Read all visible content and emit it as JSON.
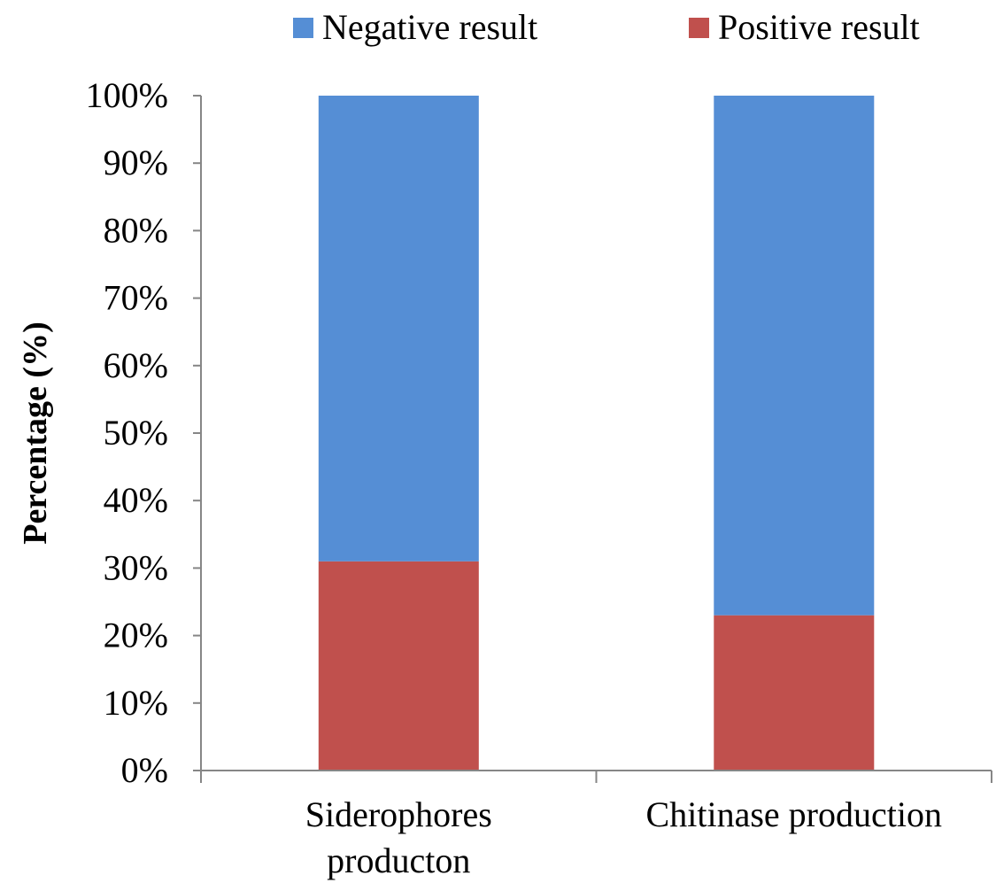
{
  "chart_data": {
    "type": "bar",
    "stacked": true,
    "title": "",
    "xlabel": "",
    "ylabel": "Percentage (%)",
    "ylim": [
      0,
      100
    ],
    "yticks": [
      "0%",
      "10%",
      "20%",
      "30%",
      "40%",
      "50%",
      "60%",
      "70%",
      "80%",
      "90%",
      "100%"
    ],
    "grid": false,
    "legend_position": "top",
    "categories": [
      [
        "Siderophores",
        "producton"
      ],
      [
        "Chitinase production"
      ]
    ],
    "series": [
      {
        "name": "Negative result",
        "color": "#558ED5",
        "values": [
          69,
          77
        ]
      },
      {
        "name": "Positive result",
        "color": "#C0504D",
        "values": [
          31,
          23
        ]
      }
    ]
  }
}
